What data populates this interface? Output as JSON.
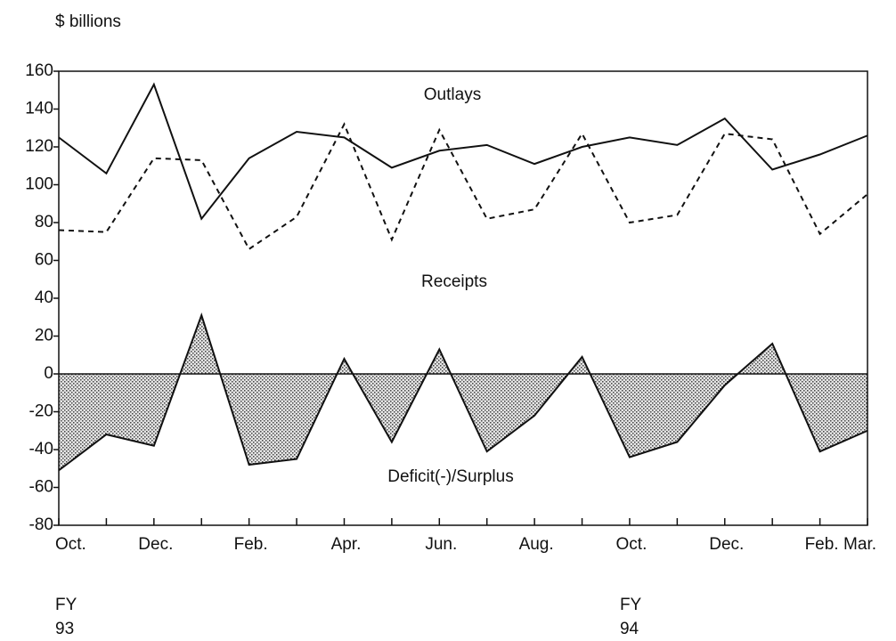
{
  "chart_data": {
    "type": "line",
    "ylabel": "$ billions",
    "categories": [
      "Oct.",
      null,
      "Dec.",
      null,
      "Feb.",
      null,
      "Apr.",
      null,
      "Jun.",
      null,
      "Aug.",
      null,
      "Oct.",
      null,
      "Dec.",
      null,
      "Feb.",
      "Mar."
    ],
    "series": [
      {
        "name": "Outlays",
        "color": "#111111",
        "style": "solid",
        "values": [
          125,
          106,
          153,
          82,
          114,
          128,
          125,
          109,
          118,
          121,
          111,
          120,
          125,
          121,
          135,
          108,
          116,
          126
        ]
      },
      {
        "name": "Receipts",
        "color": "#111111",
        "style": "dashed",
        "values": [
          76,
          75,
          114,
          113,
          66,
          83,
          132,
          71,
          129,
          82,
          87,
          127,
          80,
          84,
          127,
          124,
          74,
          95
        ]
      },
      {
        "name": "Deficit(-)/Surplus",
        "color": "#111111",
        "style": "shaded",
        "values": [
          -51,
          -32,
          -38,
          31,
          -48,
          -45,
          8,
          -36,
          13,
          -41,
          -22,
          9,
          -44,
          -36,
          -6,
          16,
          -41,
          -30
        ]
      }
    ],
    "fy_labels": [
      [
        "FY",
        "93"
      ],
      [
        "FY",
        "94"
      ]
    ],
    "ylim": [
      -80,
      160
    ],
    "yticks": [
      -80,
      -60,
      -40,
      -20,
      0,
      20,
      40,
      60,
      80,
      100,
      120,
      140,
      160
    ]
  }
}
